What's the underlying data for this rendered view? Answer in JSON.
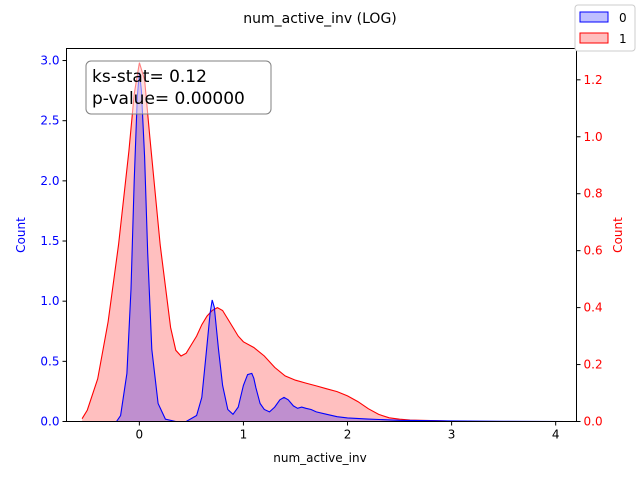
{
  "chart_data": {
    "type": "area",
    "title": "num_active_inv (LOG)",
    "xlabel": "num_active_inv",
    "ylabel_left": "Count",
    "ylabel_right": "Count",
    "xlim": [
      -0.7,
      4.2
    ],
    "ylim_left": [
      0,
      3.1
    ],
    "ylim_right": [
      0,
      1.31
    ],
    "x_ticks": [
      "0",
      "1",
      "2",
      "3",
      "4"
    ],
    "y_ticks_left": [
      "0.0",
      "0.5",
      "1.0",
      "1.5",
      "2.0",
      "2.5",
      "3.0"
    ],
    "y_ticks_right": [
      "0.0",
      "0.2",
      "0.4",
      "0.6",
      "0.8",
      "1.0",
      "1.2"
    ],
    "legend_position": "top-right",
    "annotation": {
      "line1": "ks-stat= 0.12",
      "line2": "p-value= 0.00000"
    },
    "colors": {
      "series0": "#0000ff",
      "series0_fill": "rgba(0,0,255,0.25)",
      "series1": "#ff0000",
      "series1_fill": "rgba(255,0,0,0.25)",
      "left_axis": "#0000ff",
      "right_axis": "#ff0000"
    },
    "series": [
      {
        "name": "0",
        "axis": "left",
        "x": [
          -0.22,
          -0.18,
          -0.12,
          -0.08,
          -0.05,
          -0.02,
          0.0,
          0.02,
          0.05,
          0.08,
          0.12,
          0.18,
          0.25,
          0.35,
          0.45,
          0.55,
          0.6,
          0.64,
          0.68,
          0.7,
          0.72,
          0.76,
          0.8,
          0.85,
          0.9,
          0.95,
          1.0,
          1.04,
          1.08,
          1.1,
          1.12,
          1.16,
          1.2,
          1.25,
          1.3,
          1.35,
          1.39,
          1.43,
          1.48,
          1.52,
          1.56,
          1.6,
          1.65,
          1.7,
          1.8,
          1.9,
          2.0,
          2.2,
          2.5,
          3.0,
          3.5,
          4.1
        ],
        "y": [
          0.0,
          0.05,
          0.4,
          1.1,
          2.0,
          2.7,
          2.9,
          2.75,
          2.2,
          1.4,
          0.6,
          0.15,
          0.02,
          0.0,
          0.0,
          0.05,
          0.2,
          0.55,
          0.9,
          1.01,
          0.95,
          0.6,
          0.3,
          0.1,
          0.06,
          0.12,
          0.3,
          0.39,
          0.4,
          0.36,
          0.28,
          0.15,
          0.1,
          0.08,
          0.12,
          0.18,
          0.2,
          0.18,
          0.13,
          0.11,
          0.12,
          0.11,
          0.1,
          0.08,
          0.06,
          0.04,
          0.03,
          0.02,
          0.01,
          0.005,
          0.002,
          0.0
        ]
      },
      {
        "name": "1",
        "axis": "right",
        "x": [
          -0.55,
          -0.5,
          -0.4,
          -0.3,
          -0.2,
          -0.1,
          -0.05,
          0.0,
          0.05,
          0.1,
          0.2,
          0.3,
          0.35,
          0.4,
          0.45,
          0.5,
          0.55,
          0.6,
          0.65,
          0.7,
          0.75,
          0.8,
          0.85,
          0.9,
          0.95,
          1.0,
          1.1,
          1.2,
          1.3,
          1.4,
          1.5,
          1.6,
          1.7,
          1.8,
          1.9,
          2.0,
          2.1,
          2.2,
          2.3,
          2.4,
          2.5,
          2.6,
          2.8,
          3.0,
          3.2
        ],
        "y": [
          0.01,
          0.04,
          0.15,
          0.35,
          0.62,
          0.95,
          1.15,
          1.26,
          1.2,
          1.0,
          0.62,
          0.33,
          0.25,
          0.23,
          0.24,
          0.27,
          0.3,
          0.34,
          0.37,
          0.39,
          0.4,
          0.39,
          0.36,
          0.33,
          0.3,
          0.28,
          0.26,
          0.23,
          0.19,
          0.16,
          0.145,
          0.135,
          0.125,
          0.115,
          0.105,
          0.09,
          0.07,
          0.045,
          0.025,
          0.013,
          0.008,
          0.005,
          0.003,
          0.001,
          0.0
        ]
      }
    ]
  }
}
